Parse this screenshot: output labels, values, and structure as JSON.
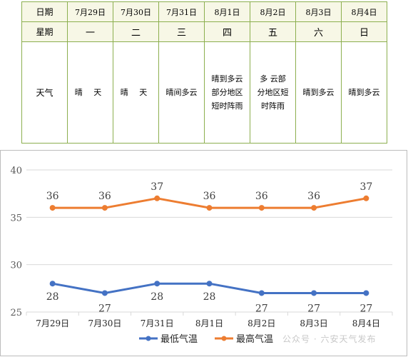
{
  "table": {
    "row_labels": {
      "date": "日期",
      "weekday": "星期",
      "weather": "天气"
    },
    "columns": [
      {
        "date": "7月29日",
        "weekday": "一",
        "weather": "晴 天"
      },
      {
        "date": "7月30日",
        "weekday": "二",
        "weather": "晴 天"
      },
      {
        "date": "7月31日",
        "weekday": "三",
        "weather": "晴间多云"
      },
      {
        "date": "8月1日",
        "weekday": "四",
        "weather": "晴到多云部分地区短时阵雨"
      },
      {
        "date": "8月2日",
        "weekday": "五",
        "weather": "多 云部分地区短时阵雨"
      },
      {
        "date": "8月3日",
        "weekday": "六",
        "weather": "晴到多云"
      },
      {
        "date": "8月4日",
        "weekday": "日",
        "weather": "晴到多云"
      }
    ],
    "border_color": "#8caf4f",
    "header_background": "#f7f7e6"
  },
  "chart_data": {
    "type": "line",
    "categories": [
      "7月29日",
      "7月30日",
      "7月31日",
      "8月1日",
      "8月2日",
      "8月3日",
      "8月4日"
    ],
    "series": [
      {
        "name": "最低气温",
        "values": [
          28,
          27,
          28,
          28,
          27,
          27,
          27
        ],
        "color": "#4472c4"
      },
      {
        "name": "最高气温",
        "values": [
          36,
          36,
          37,
          36,
          36,
          36,
          37
        ],
        "color": "#ed7d31"
      }
    ],
    "ylim": [
      25,
      40
    ],
    "yticks": [
      25,
      30,
      35,
      40
    ],
    "grid": true,
    "legend": "bottom"
  },
  "watermark": "公众号 · 六安天气发布"
}
